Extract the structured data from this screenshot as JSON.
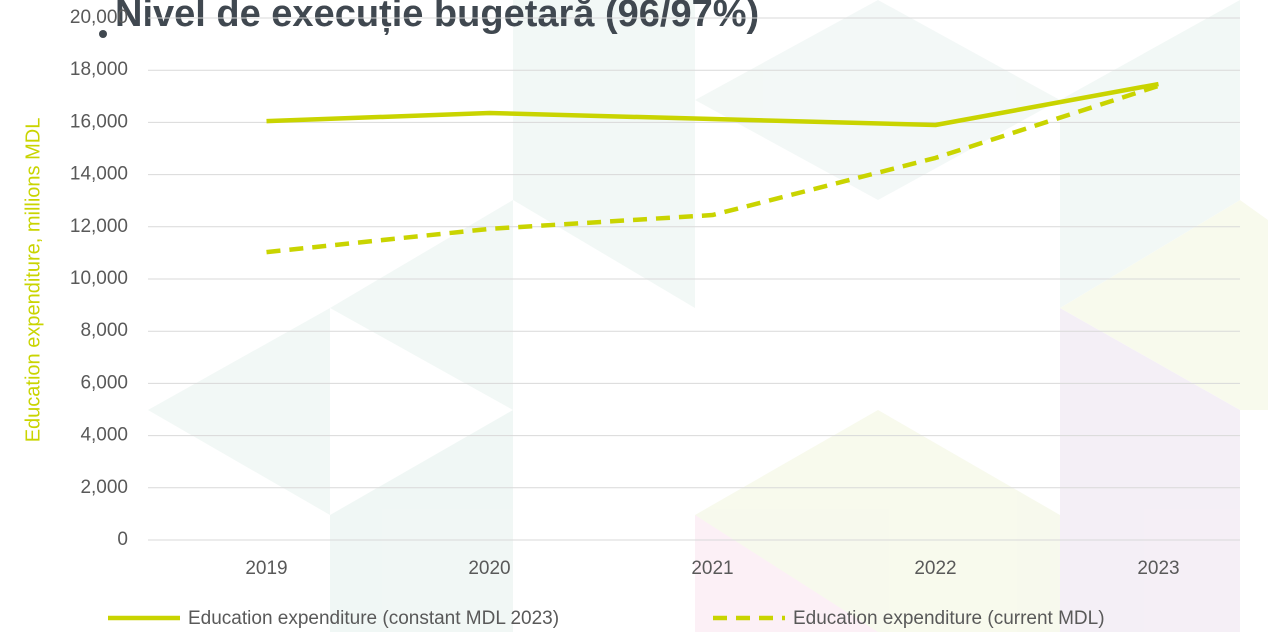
{
  "chart_data": {
    "type": "line",
    "title": "Nivel de execuție bugetară (96/97%)",
    "y_label": "Education expenditure, millions MDL",
    "categories": [
      "2019",
      "2020",
      "2021",
      "2022",
      "2023"
    ],
    "series": [
      {
        "name": "Education expenditure (constant MDL 2023)",
        "color": "#c9d400",
        "dash": false,
        "values": [
          16050,
          16360,
          16130,
          15900,
          17470
        ]
      },
      {
        "name": "Education expenditure (current MDL)",
        "color": "#c9d400",
        "dash": true,
        "values": [
          11030,
          11920,
          12450,
          14640,
          17400
        ]
      }
    ],
    "ylim": [
      0,
      20000
    ],
    "yticks": [
      0,
      {
        "value": 2000,
        "label": "2,000"
      },
      {
        "value": 4000,
        "label": "4,000"
      },
      {
        "value": 6000,
        "label": "6,000"
      },
      {
        "value": 8000,
        "label": "8,000"
      },
      {
        "value": 10000,
        "label": "10,000"
      },
      {
        "value": 12000,
        "label": "12,000"
      },
      {
        "value": 14000,
        "label": "14,000"
      },
      {
        "value": 16000,
        "label": "16,000"
      },
      {
        "value": 18000,
        "label": "18,000"
      },
      {
        "value": 20000,
        "label": "20,000"
      }
    ],
    "grid": true,
    "legend": "bottom"
  }
}
